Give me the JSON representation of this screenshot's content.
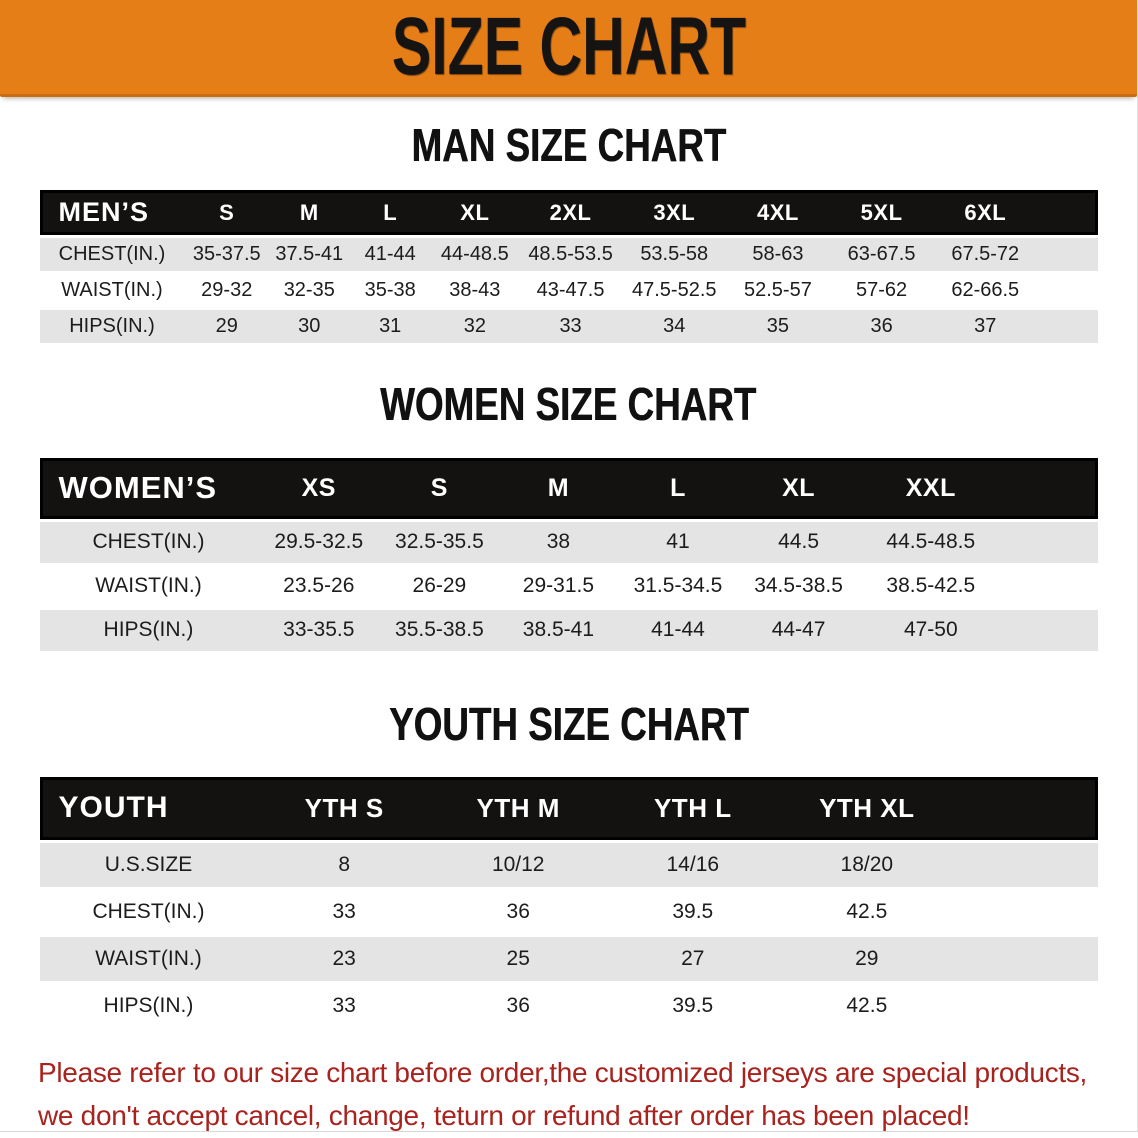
{
  "banner": {
    "title": "SIZE CHART"
  },
  "sections": [
    {
      "title": "MAN SIZE CHART",
      "header_label": "MEN’S",
      "columns": [
        "S",
        "M",
        "L",
        "XL",
        "2XL",
        "3XL",
        "4XL",
        "5XL",
        "6XL"
      ],
      "rows": [
        {
          "label": "CHEST(IN.)",
          "values": [
            "35-37.5",
            "37.5-41",
            "41-44",
            "44-48.5",
            "48.5-53.5",
            "53.5-58",
            "58-63",
            "63-67.5",
            "67.5-72"
          ]
        },
        {
          "label": "WAIST(IN.)",
          "values": [
            "29-32",
            "32-35",
            "35-38",
            "38-43",
            "43-47.5",
            "47.5-52.5",
            "52.5-57",
            "57-62",
            "62-66.5"
          ]
        },
        {
          "label": "HIPS(IN.)",
          "values": [
            "29",
            "30",
            "31",
            "32",
            "33",
            "34",
            "35",
            "36",
            "37"
          ]
        }
      ]
    },
    {
      "title": "WOMEN SIZE CHART",
      "header_label": "WOMEN’S",
      "columns": [
        "XS",
        "S",
        "M",
        "L",
        "XL",
        "XXL"
      ],
      "rows": [
        {
          "label": "CHEST(IN.)",
          "values": [
            "29.5-32.5",
            "32.5-35.5",
            "38",
            "41",
            "44.5",
            "44.5-48.5"
          ]
        },
        {
          "label": "WAIST(IN.)",
          "values": [
            "23.5-26",
            "26-29",
            "29-31.5",
            "31.5-34.5",
            "34.5-38.5",
            "38.5-42.5"
          ]
        },
        {
          "label": "HIPS(IN.)",
          "values": [
            "33-35.5",
            "35.5-38.5",
            "38.5-41",
            "41-44",
            "44-47",
            "47-50"
          ]
        }
      ]
    },
    {
      "title": "YOUTH SIZE CHART",
      "header_label": "YOUTH",
      "columns": [
        "YTH S",
        "YTH M",
        "YTH L",
        "YTH XL"
      ],
      "rows": [
        {
          "label": "U.S.SIZE",
          "values": [
            "8",
            "10/12",
            "14/16",
            "18/20"
          ]
        },
        {
          "label": "CHEST(IN.)",
          "values": [
            "33",
            "36",
            "39.5",
            "42.5"
          ]
        },
        {
          "label": "WAIST(IN.)",
          "values": [
            "23",
            "25",
            "27",
            "29"
          ]
        },
        {
          "label": "HIPS(IN.)",
          "values": [
            "33",
            "36",
            "39.5",
            "42.5"
          ]
        }
      ]
    }
  ],
  "disclaimer": {
    "line1": "Please refer to our size chart before order,the customized jerseys are special products,",
    "line2": "we don't accept cancel, change, teturn or refund after order has been placed!"
  },
  "colors": {
    "banner_bg": "#E67E17",
    "header_bar_bg": "#141211",
    "row_stripe": "#E4E4E4",
    "disclaimer_red": "#A8231E"
  }
}
